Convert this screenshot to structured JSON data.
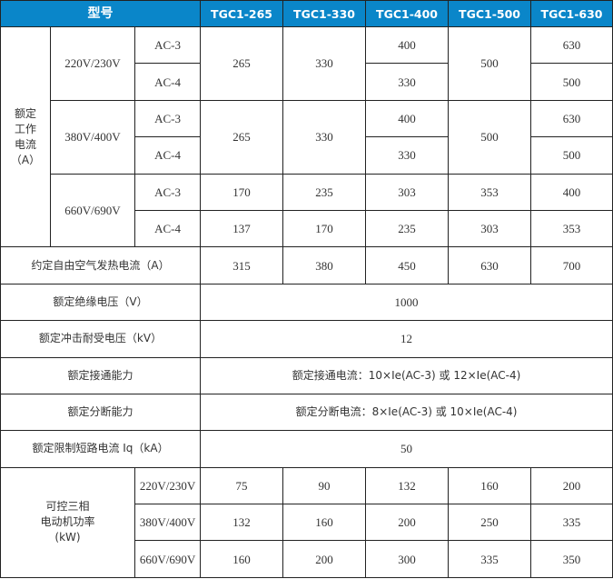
{
  "header": {
    "model_label": "型号",
    "models": [
      "TGC1-265",
      "TGC1-330",
      "TGC1-400",
      "TGC1-500",
      "TGC1-630"
    ]
  },
  "rated_current": {
    "label_lines": [
      "额定",
      "工作",
      "电流",
      "（A）"
    ],
    "groups": [
      {
        "voltage": "220V/230V",
        "ac3": "AC-3",
        "ac4": "AC-4",
        "merged_265": "265",
        "merged_330": "330",
        "tgc400_ac3": "400",
        "tgc400_ac4": "330",
        "merged_500": "500",
        "tgc630_ac3": "630",
        "tgc630_ac4": "500"
      },
      {
        "voltage": "380V/400V",
        "ac3": "AC-3",
        "ac4": "AC-4",
        "merged_265": "265",
        "merged_330": "330",
        "tgc400_ac3": "400",
        "tgc400_ac4": "330",
        "merged_500": "500",
        "tgc630_ac3": "630",
        "tgc630_ac4": "500"
      },
      {
        "voltage": "660V/690V",
        "ac3": "AC-3",
        "ac4": "AC-4",
        "ac3_values": [
          "170",
          "235",
          "303",
          "353",
          "400"
        ],
        "ac4_values": [
          "137",
          "170",
          "235",
          "303",
          "353"
        ]
      }
    ]
  },
  "thermal_current": {
    "label": "约定自由空气发热电流（A）",
    "values": [
      "315",
      "380",
      "450",
      "630",
      "700"
    ]
  },
  "insulation_voltage": {
    "label": "额定绝缘电压（V）",
    "value": "1000"
  },
  "impulse_voltage": {
    "label": "额定冲击耐受电压（kV）",
    "value": "12"
  },
  "making_capacity": {
    "label": "额定接通能力",
    "value": "额定接通电流：10×Ie(AC-3) 或 12×Ie(AC-4)"
  },
  "breaking_capacity": {
    "label": "额定分断能力",
    "value": "额定分断电流：8×Ie(AC-3) 或 10×Ie(AC-4)"
  },
  "short_circuit": {
    "label": "额定限制短路电流 Iq（kA）",
    "value": "50"
  },
  "motor_power": {
    "label_lines": [
      "可控三相",
      "电动机功率",
      "(kW)"
    ],
    "rows": [
      {
        "voltage": "220V/230V",
        "values": [
          "75",
          "90",
          "132",
          "160",
          "200"
        ]
      },
      {
        "voltage": "380V/400V",
        "values": [
          "132",
          "160",
          "200",
          "250",
          "335"
        ]
      },
      {
        "voltage": "660V/690V",
        "values": [
          "160",
          "200",
          "300",
          "335",
          "350"
        ]
      }
    ]
  }
}
